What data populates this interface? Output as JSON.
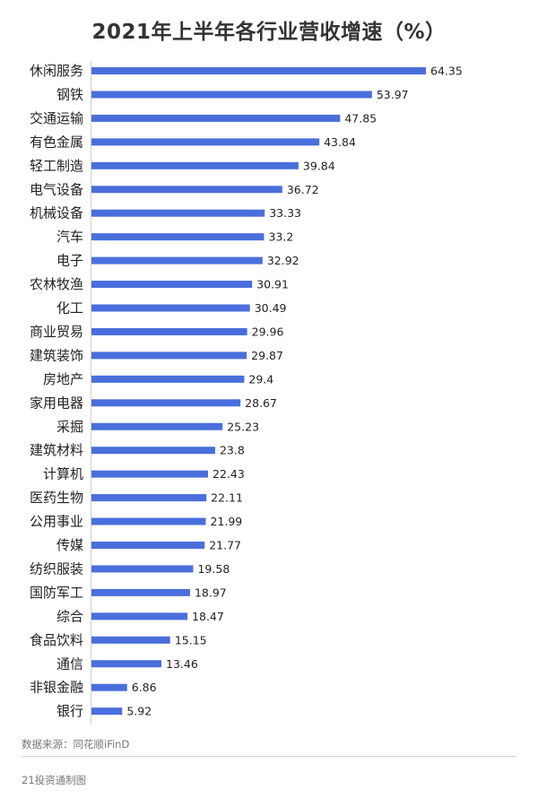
{
  "chart_data": {
    "type": "bar",
    "orientation": "horizontal",
    "title": "2021年上半年各行业营收增速（%）",
    "categories": [
      "休闲服务",
      "钢铁",
      "交通运输",
      "有色金属",
      "轻工制造",
      "电气设备",
      "机械设备",
      "汽车",
      "电子",
      "农林牧渔",
      "化工",
      "商业贸易",
      "建筑装饰",
      "房地产",
      "家用电器",
      "采掘",
      "建筑材料",
      "计算机",
      "医药生物",
      "公用事业",
      "传媒",
      "纺织服装",
      "国防军工",
      "综合",
      "食品饮料",
      "通信",
      "非银金融",
      "银行"
    ],
    "values": [
      64.35,
      53.97,
      47.85,
      43.84,
      39.84,
      36.72,
      33.33,
      33.2,
      32.92,
      30.91,
      30.49,
      29.96,
      29.87,
      29.4,
      28.67,
      25.23,
      23.8,
      22.43,
      22.11,
      21.99,
      21.77,
      19.58,
      18.97,
      18.47,
      15.15,
      13.46,
      6.86,
      5.92
    ],
    "value_labels": [
      "64.35",
      "53.97",
      "47.85",
      "43.84",
      "39.84",
      "36.72",
      "33.33",
      "33.2",
      "32.92",
      "30.91",
      "30.49",
      "29.96",
      "29.87",
      "29.4",
      "28.67",
      "25.23",
      "23.8",
      "22.43",
      "22.11",
      "21.99",
      "21.77",
      "19.58",
      "18.97",
      "18.47",
      "15.15",
      "13.46",
      "6.86",
      "5.92"
    ],
    "bar_color": "#4a6fdc",
    "grid": false
  },
  "source": "数据来源：同花顺iFinD",
  "brand": "21投资通制图"
}
